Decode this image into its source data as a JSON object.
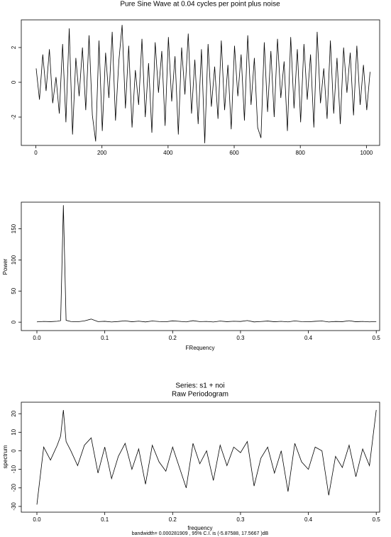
{
  "chart_data": [
    {
      "type": "line",
      "title": "Pure Sine Wave at 0.04 cycles per point plus noise",
      "color": "#000000",
      "x": [
        1,
        11,
        21,
        31,
        41,
        51,
        61,
        71,
        81,
        91,
        101,
        111,
        121,
        131,
        141,
        151,
        161,
        171,
        181,
        191,
        201,
        211,
        221,
        231,
        241,
        251,
        261,
        271,
        281,
        291,
        301,
        311,
        321,
        331,
        341,
        351,
        361,
        371,
        381,
        391,
        401,
        411,
        421,
        431,
        441,
        451,
        461,
        471,
        481,
        491,
        501,
        511,
        521,
        531,
        541,
        551,
        561,
        571,
        581,
        591,
        601,
        611,
        621,
        631,
        641,
        651,
        661,
        671,
        681,
        691,
        701,
        711,
        721,
        731,
        741,
        751,
        761,
        771,
        781,
        791,
        801,
        811,
        821,
        831,
        841,
        851,
        861,
        871,
        881,
        891,
        901,
        911,
        921,
        931,
        941,
        951,
        961,
        971,
        981,
        991,
        1001,
        1011
      ],
      "values": [
        0.8,
        -1.0,
        1.6,
        -0.5,
        1.9,
        -1.2,
        0.3,
        -1.8,
        2.2,
        -2.3,
        3.1,
        -3.0,
        1.4,
        -0.8,
        2.0,
        -1.6,
        2.7,
        -1.9,
        -3.4,
        2.4,
        -2.8,
        1.7,
        -0.9,
        2.9,
        -2.2,
        1.2,
        3.3,
        -1.5,
        2.1,
        -2.6,
        0.7,
        -1.3,
        2.5,
        -2.0,
        1.1,
        -2.9,
        2.3,
        -0.6,
        1.8,
        -2.5,
        2.6,
        -1.1,
        1.5,
        -3.0,
        2.0,
        -0.7,
        2.8,
        -1.8,
        1.3,
        -2.4,
        1.9,
        -3.5,
        2.2,
        -1.4,
        0.9,
        -2.1,
        2.4,
        -1.6,
        1.0,
        -2.7,
        2.1,
        -0.8,
        1.6,
        -2.2,
        2.7,
        -1.3,
        1.4,
        -2.6,
        -3.2,
        2.3,
        -1.7,
        1.8,
        -2.0,
        2.5,
        -0.9,
        1.2,
        -2.8,
        2.6,
        -1.5,
        1.9,
        -2.3,
        2.2,
        -1.0,
        1.6,
        -2.6,
        2.9,
        -1.2,
        0.8,
        -2.1,
        2.4,
        -1.8,
        1.4,
        -2.4,
        2.0,
        -0.6,
        1.7,
        -1.9,
        2.1,
        -1.3,
        1.0,
        -1.6,
        0.6
      ],
      "xlim": [
        -44,
        1040
      ],
      "ylim": [
        -3.63,
        3.59
      ],
      "xticks": [
        0,
        200,
        400,
        600,
        800,
        1000
      ],
      "yticks": [
        -2,
        0,
        2
      ]
    },
    {
      "type": "line",
      "xlabel": "FRequency",
      "ylabel": "Power",
      "color": "#000000",
      "x": [
        0,
        0.01,
        0.02,
        0.03,
        0.035,
        0.039,
        0.043,
        0.05,
        0.06,
        0.07,
        0.08,
        0.09,
        0.1,
        0.11,
        0.12,
        0.13,
        0.14,
        0.15,
        0.16,
        0.17,
        0.18,
        0.19,
        0.2,
        0.21,
        0.22,
        0.23,
        0.24,
        0.25,
        0.26,
        0.27,
        0.28,
        0.29,
        0.3,
        0.31,
        0.32,
        0.33,
        0.34,
        0.35,
        0.36,
        0.37,
        0.38,
        0.39,
        0.4,
        0.41,
        0.42,
        0.43,
        0.44,
        0.45,
        0.46,
        0.47,
        0.48,
        0.49,
        0.5
      ],
      "values": [
        0.5,
        1.2,
        0.8,
        1.5,
        2.5,
        188,
        3,
        1,
        0.6,
        2,
        5,
        0.9,
        1.4,
        0.3,
        1.1,
        2.2,
        0.7,
        1.6,
        0.4,
        1.9,
        1.0,
        0.6,
        2.1,
        1.3,
        0.5,
        2.4,
        0.9,
        1.2,
        0.3,
        1.7,
        0.8,
        1.5,
        1.1,
        2.6,
        0.4,
        1.0,
        1.8,
        0.7,
        1.3,
        0.5,
        2.0,
        0.9,
        0.6,
        1.4,
        1.9,
        0.3,
        1.1,
        0.8,
        2.3,
        0.7,
        1.2,
        0.5,
        1.0
      ],
      "xlim": [
        -0.023,
        0.505
      ],
      "ylim": [
        -13.5,
        192.8
      ],
      "xticks": [
        {
          "value": 0,
          "label": "0.0"
        },
        0.1,
        0.2,
        0.3,
        0.4,
        0.5
      ],
      "yticks": [
        0,
        50,
        100,
        150
      ]
    },
    {
      "type": "line",
      "title": "Series: s1 + noi",
      "subtitle": "Raw Periodogram",
      "xlabel": "frequency",
      "ylabel": "spectrum",
      "note": "bandwidth= 0.000281909 , 95% C.I. is (-5.87588, 17.5667 )dB",
      "color": "#000000",
      "x": [
        0,
        0.01,
        0.02,
        0.03,
        0.035,
        0.039,
        0.043,
        0.05,
        0.06,
        0.07,
        0.08,
        0.09,
        0.1,
        0.11,
        0.12,
        0.13,
        0.14,
        0.15,
        0.16,
        0.17,
        0.18,
        0.19,
        0.2,
        0.21,
        0.22,
        0.23,
        0.24,
        0.25,
        0.26,
        0.27,
        0.28,
        0.29,
        0.3,
        0.31,
        0.32,
        0.33,
        0.34,
        0.35,
        0.36,
        0.37,
        0.38,
        0.39,
        0.4,
        0.41,
        0.42,
        0.43,
        0.44,
        0.45,
        0.46,
        0.47,
        0.48,
        0.49,
        0.5
      ],
      "values": [
        -29,
        2,
        -5,
        3,
        8,
        22,
        5,
        0,
        -8,
        3,
        7,
        -12,
        2,
        -15,
        -3,
        4,
        -10,
        1,
        -18,
        3,
        -6,
        -11,
        2,
        -9,
        -20,
        4,
        -7,
        0,
        -16,
        3,
        -8,
        2,
        -1,
        5,
        -19,
        -4,
        2,
        -12,
        0,
        -22,
        4,
        -6,
        -10,
        2,
        0,
        -24,
        -3,
        -9,
        3,
        -14,
        1,
        -8,
        22
      ],
      "xlim": [
        -0.023,
        0.505
      ],
      "ylim": [
        -33.1,
        26.2
      ],
      "xticks": [
        {
          "value": 0,
          "label": "0.0"
        },
        0.1,
        0.2,
        0.3,
        0.4,
        0.5
      ],
      "yticks": [
        -30,
        -20,
        -10,
        0,
        10,
        20
      ]
    }
  ]
}
